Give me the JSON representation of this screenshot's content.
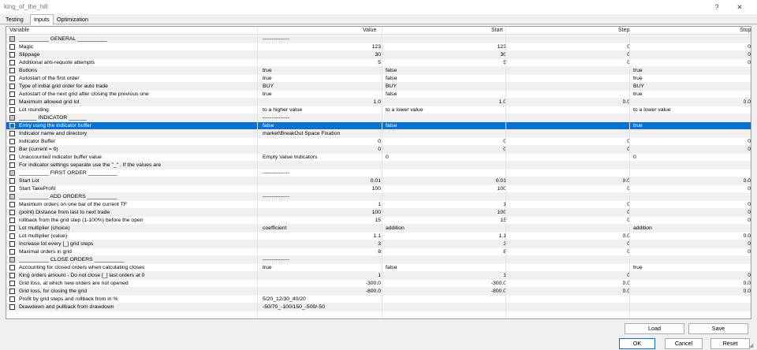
{
  "window": {
    "title": "king_of_the_hill",
    "help": "?",
    "close": "✕"
  },
  "tabs": [
    {
      "label": "Testing"
    },
    {
      "label": "Inputs"
    },
    {
      "label": "Optimization"
    }
  ],
  "columns": {
    "variable": "Variable",
    "value": "Value",
    "start": "Start",
    "step": "Step",
    "stop": "Stop"
  },
  "rows": [
    {
      "name": "__________ GENERAL __________",
      "value": "---------------",
      "start": "",
      "step": "",
      "stop": "",
      "h": true
    },
    {
      "name": "Magic",
      "value": "123",
      "start": "123",
      "step": "0",
      "stop": "0",
      "n": true
    },
    {
      "name": "Slippage",
      "value": "30",
      "start": "30",
      "step": "0",
      "stop": "0",
      "n": true
    },
    {
      "name": "Additional anti-requote attempts",
      "value": "5",
      "start": "5",
      "step": "0",
      "stop": "0",
      "n": true
    },
    {
      "name": "Buttons",
      "value": "true",
      "start": "false",
      "step": "",
      "stop": "true"
    },
    {
      "name": "Autostart of the first order",
      "value": "true",
      "start": "false",
      "step": "",
      "stop": "true"
    },
    {
      "name": "Type of initial grid order for auto trade",
      "value": "BUY",
      "start": "BUY",
      "step": "",
      "stop": "BUY"
    },
    {
      "name": "Autostart of the next grid after closing the previous one",
      "value": "true",
      "start": "false",
      "step": "",
      "stop": "true"
    },
    {
      "name": "Maximum allowed grid lot",
      "value": "1.0",
      "start": "1.0",
      "step": "0.0",
      "stop": "0.0",
      "n": true
    },
    {
      "name": "Lot rounding",
      "value": "to a higher value",
      "start": "to a lower value",
      "step": "",
      "stop": "to a lower value"
    },
    {
      "name": "______ INDICATOR ______",
      "value": "---------------",
      "start": "",
      "step": "",
      "stop": "",
      "h": true
    },
    {
      "name": "Entry using the indicator buffer",
      "value": "false",
      "start": "false",
      "step": "",
      "stop": "true",
      "sel": true
    },
    {
      "name": "Indicator name and directory",
      "value": "market\\BreakOut Space Fixation",
      "start": "",
      "step": "",
      "stop": ""
    },
    {
      "name": "Indicator Buffer",
      "value": "0",
      "start": "0",
      "step": "0",
      "stop": "0",
      "n": true
    },
    {
      "name": "Bar (current = 0)",
      "value": "0",
      "start": "0",
      "step": "0",
      "stop": "0",
      "n": true
    },
    {
      "name": "Unaccounted indicator buffer value",
      "value": "Empty Value Indicators",
      "start": "0",
      "step": "",
      "stop": "0"
    },
    {
      "name": "For indicator settings separate use the \"_\" . If the values are",
      "value": "",
      "start": "",
      "step": "",
      "stop": ""
    },
    {
      "name": "__________ FIRST ORDER __________",
      "value": "---------------",
      "start": "",
      "step": "",
      "stop": "",
      "h": true
    },
    {
      "name": "Start Lot",
      "value": "0.01",
      "start": "0.01",
      "step": "0.0",
      "stop": "0.0",
      "n": true
    },
    {
      "name": "Start TakeProfit",
      "value": "100",
      "start": "100",
      "step": "0",
      "stop": "0",
      "n": true
    },
    {
      "name": "__________ ADD ORDERS __________",
      "value": "---------------",
      "start": "",
      "step": "",
      "stop": "",
      "h": true
    },
    {
      "name": "Maximum orders on one bar of the current TF",
      "value": "1",
      "start": "1",
      "step": "0",
      "stop": "0",
      "n": true
    },
    {
      "name": "(point) Distance from last to next trade",
      "value": "100",
      "start": "100",
      "step": "0",
      "stop": "0",
      "n": true
    },
    {
      "name": "rollback from the grid step (1-100%) before the open",
      "value": "15",
      "start": "15",
      "step": "0",
      "stop": "0",
      "n": true
    },
    {
      "name": "Lot multiplier (choice)",
      "value": "coefficient",
      "start": "addition",
      "step": "",
      "stop": "addition"
    },
    {
      "name": "Lot multiplier (value)",
      "value": "1.1",
      "start": "1.1",
      "step": "0.0",
      "stop": "0.0",
      "n": true
    },
    {
      "name": "Increase lot every [_] grid steps",
      "value": "3",
      "start": "3",
      "step": "0",
      "stop": "0",
      "n": true
    },
    {
      "name": "Maximal orders in grid",
      "value": "8",
      "start": "8",
      "step": "0",
      "stop": "0",
      "n": true
    },
    {
      "name": "__________ CLOSE ORDERS __________",
      "value": "---------------",
      "start": "",
      "step": "",
      "stop": "",
      "h": true
    },
    {
      "name": "Accounting for closed orders when calculating closes",
      "value": "true",
      "start": "false",
      "step": "",
      "stop": "true"
    },
    {
      "name": "King orders amount - Do not close [_] last orders at 0",
      "value": "1",
      "start": "1",
      "step": "0",
      "stop": "0",
      "n": true
    },
    {
      "name": "Grid loss, at which new orders are not opened",
      "value": "-300.0",
      "start": "-300.0",
      "step": "0.0",
      "stop": "0.0",
      "n": true
    },
    {
      "name": "Grid loss, for closing the grid",
      "value": "-800.0",
      "start": "-800.0",
      "step": "0.0",
      "stop": "0.0",
      "n": true
    },
    {
      "name": "Profit by grid steps and rollback from in %",
      "value": "5/20_12/30_40/20",
      "start": "",
      "step": "",
      "stop": ""
    },
    {
      "name": "Drawdown and pullback from drawdown",
      "value": "-50/70_-100/150_-500/-50",
      "start": "",
      "step": "",
      "stop": ""
    }
  ],
  "buttons": {
    "load": "Load",
    "save": "Save",
    "ok": "OK",
    "cancel": "Cancel",
    "reset": "Reset"
  }
}
